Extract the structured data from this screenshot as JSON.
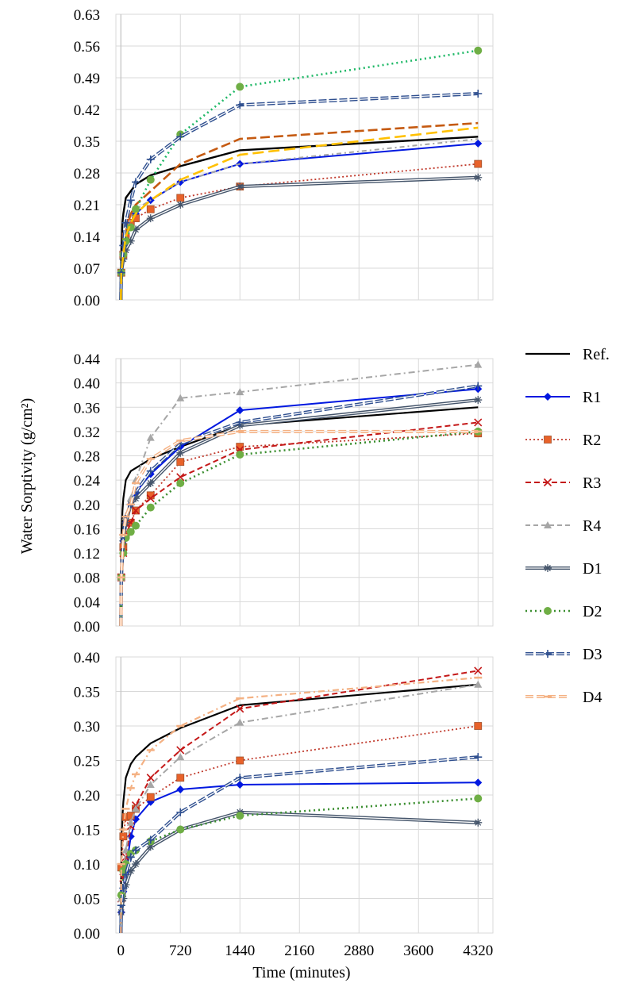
{
  "figure": {
    "ylabel": "Water Sorptivity (g/cm²)",
    "xlabel": "Time (minutes)"
  },
  "legend": [
    {
      "key": "ref",
      "label": "Ref."
    },
    {
      "key": "r1",
      "label": "R1"
    },
    {
      "key": "r2",
      "label": "R2"
    },
    {
      "key": "r3",
      "label": "R3"
    },
    {
      "key": "r4",
      "label": "R4"
    },
    {
      "key": "d1",
      "label": "D1"
    },
    {
      "key": "d2",
      "label": "D2"
    },
    {
      "key": "d3",
      "label": "D3"
    },
    {
      "key": "d4",
      "label": "D4"
    }
  ],
  "series_styles": {
    "ref": {
      "color": "#000000",
      "dash": "",
      "width": 2.2,
      "marker": "none"
    },
    "r1": {
      "color": "#0018e0",
      "dash": "",
      "width": 2.0,
      "marker": "diamond"
    },
    "r2": {
      "color": "#c0392b",
      "dash": "2 3",
      "width": 1.8,
      "marker": "square",
      "markerColor": "#e8622a"
    },
    "r3": {
      "color": "#c41818",
      "dash": "7 4",
      "width": 2.0,
      "marker": "x"
    },
    "r4": {
      "color": "#a6a6a6",
      "dash": "6 4",
      "width": 2.0,
      "marker": "triangle"
    },
    "d1": {
      "color": "#44546a",
      "dash": "",
      "width": 1.5,
      "marker": "asterisk",
      "double": true
    },
    "d2": {
      "color": "#3a8e2f",
      "dash": "2 4",
      "width": 2.6,
      "marker": "circle",
      "markerColor": "#6fae45"
    },
    "d3": {
      "color": "#2f4f8f",
      "dash": "10 3",
      "width": 1.5,
      "marker": "plus",
      "double": true
    },
    "d4": {
      "color": "#f4b183",
      "dash": "10 4",
      "width": 1.5,
      "marker": "dash",
      "double": true
    }
  },
  "chart_data": [
    {
      "type": "line",
      "panel": "top",
      "ylim": [
        0,
        0.63
      ],
      "yticks": [
        "0.00",
        "0.07",
        "0.14",
        "0.21",
        "0.28",
        "0.35",
        "0.42",
        "0.49",
        "0.56",
        "0.63"
      ],
      "xlim": [
        -60,
        4500
      ],
      "xticks": [
        "0",
        "720",
        "1440",
        "2160",
        "2880",
        "3600",
        "4320"
      ],
      "grid": true,
      "series": [
        {
          "key": "ref",
          "color": "#000000",
          "dash": "",
          "width": 2.4,
          "marker": "none",
          "x": [
            0,
            1,
            5,
            10,
            20,
            30,
            60,
            120,
            180,
            360,
            720,
            1440,
            4320
          ],
          "y": [
            0,
            0.06,
            0.1,
            0.13,
            0.17,
            0.19,
            0.225,
            0.24,
            0.255,
            0.275,
            0.295,
            0.33,
            0.36
          ]
        },
        {
          "key": "r1",
          "x": [
            0,
            5,
            30,
            60,
            120,
            180,
            360,
            720,
            1440,
            4320
          ],
          "y": [
            0,
            0.06,
            0.1,
            0.13,
            0.17,
            0.19,
            0.22,
            0.26,
            0.3,
            0.345
          ]
        },
        {
          "key": "r2",
          "x": [
            0,
            5,
            30,
            60,
            120,
            180,
            360,
            720,
            1440,
            4320
          ],
          "y": [
            0,
            0.06,
            0.1,
            0.14,
            0.17,
            0.18,
            0.2,
            0.225,
            0.25,
            0.3
          ]
        },
        {
          "key": "r3",
          "color": "#c55a11",
          "dash": "12 5",
          "width": 2.6,
          "marker": "none",
          "x": [
            0,
            5,
            30,
            60,
            120,
            180,
            360,
            720,
            1440,
            4320
          ],
          "y": [
            0,
            0.06,
            0.11,
            0.15,
            0.19,
            0.21,
            0.24,
            0.3,
            0.355,
            0.39
          ]
        },
        {
          "key": "r4",
          "color": "#a6a6a6",
          "dash": "6 4 2 4",
          "marker": "none",
          "x": [
            0,
            5,
            30,
            60,
            120,
            180,
            360,
            720,
            1440,
            4320
          ],
          "y": [
            0,
            0.06,
            0.11,
            0.15,
            0.18,
            0.2,
            0.22,
            0.26,
            0.3,
            0.355
          ]
        },
        {
          "key": "d1",
          "x": [
            0,
            5,
            30,
            60,
            120,
            180,
            360,
            720,
            1440,
            4320
          ],
          "y": [
            0,
            0.06,
            0.09,
            0.11,
            0.13,
            0.155,
            0.18,
            0.21,
            0.25,
            0.27
          ]
        },
        {
          "key": "d2",
          "color": "#1eb866",
          "x": [
            0,
            5,
            30,
            60,
            120,
            180,
            360,
            720,
            1440,
            4320
          ],
          "y": [
            0,
            0.06,
            0.1,
            0.13,
            0.16,
            0.2,
            0.265,
            0.365,
            0.47,
            0.55
          ]
        },
        {
          "key": "d3",
          "x": [
            0,
            5,
            30,
            60,
            120,
            180,
            360,
            720,
            1440,
            4320
          ],
          "y": [
            0,
            0.06,
            0.12,
            0.17,
            0.22,
            0.26,
            0.31,
            0.36,
            0.43,
            0.455
          ]
        },
        {
          "key": "d4",
          "color": "#ffc000",
          "dash": "14 6",
          "width": 2.6,
          "marker": "none",
          "double": false,
          "x": [
            0,
            5,
            30,
            60,
            120,
            180,
            360,
            720,
            1440,
            4320
          ],
          "y": [
            0,
            0.06,
            0.1,
            0.14,
            0.17,
            0.19,
            0.22,
            0.265,
            0.32,
            0.38
          ]
        }
      ]
    },
    {
      "type": "line",
      "panel": "middle",
      "ylim": [
        0,
        0.44
      ],
      "yticks": [
        "0.00",
        "0.04",
        "0.08",
        "0.12",
        "0.16",
        "0.20",
        "0.24",
        "0.28",
        "0.32",
        "0.36",
        "0.40",
        "0.44"
      ],
      "xlim": [
        -60,
        4500
      ],
      "xticks": [
        "0",
        "720",
        "1440",
        "2160",
        "2880",
        "3600",
        "4320"
      ],
      "grid": true,
      "series": [
        {
          "key": "ref",
          "x": [
            0,
            1,
            5,
            10,
            20,
            30,
            60,
            120,
            180,
            360,
            720,
            1440,
            4320
          ],
          "y": [
            0,
            0.08,
            0.13,
            0.16,
            0.19,
            0.21,
            0.24,
            0.255,
            0.26,
            0.275,
            0.295,
            0.33,
            0.36
          ]
        },
        {
          "key": "r1",
          "x": [
            0,
            5,
            30,
            60,
            120,
            180,
            360,
            720,
            1440,
            4320
          ],
          "y": [
            0,
            0.08,
            0.14,
            0.17,
            0.2,
            0.22,
            0.25,
            0.295,
            0.355,
            0.39
          ]
        },
        {
          "key": "r2",
          "x": [
            0,
            5,
            30,
            60,
            120,
            180,
            360,
            720,
            1440,
            4320
          ],
          "y": [
            0,
            0.08,
            0.13,
            0.15,
            0.17,
            0.19,
            0.215,
            0.27,
            0.295,
            0.317
          ]
        },
        {
          "key": "r3",
          "x": [
            0,
            5,
            30,
            60,
            120,
            180,
            360,
            720,
            1440,
            4320
          ],
          "y": [
            0,
            0.08,
            0.12,
            0.15,
            0.17,
            0.19,
            0.21,
            0.245,
            0.29,
            0.335
          ]
        },
        {
          "key": "r4",
          "dash": "8 4 2 4",
          "x": [
            0,
            5,
            30,
            60,
            120,
            180,
            360,
            720,
            1440,
            4320
          ],
          "y": [
            0,
            0.08,
            0.15,
            0.18,
            0.21,
            0.24,
            0.31,
            0.375,
            0.385,
            0.43
          ]
        },
        {
          "key": "d1",
          "x": [
            0,
            5,
            30,
            60,
            120,
            180,
            360,
            720,
            1440,
            4320
          ],
          "y": [
            0,
            0.08,
            0.14,
            0.17,
            0.2,
            0.21,
            0.235,
            0.285,
            0.33,
            0.372
          ]
        },
        {
          "key": "d2",
          "x": [
            0,
            5,
            30,
            60,
            120,
            180,
            360,
            720,
            1440,
            4320
          ],
          "y": [
            0,
            0.08,
            0.12,
            0.145,
            0.155,
            0.165,
            0.195,
            0.235,
            0.282,
            0.32
          ]
        },
        {
          "key": "d3",
          "x": [
            0,
            5,
            30,
            60,
            120,
            180,
            360,
            720,
            1440,
            4320
          ],
          "y": [
            0,
            0.08,
            0.15,
            0.18,
            0.2,
            0.22,
            0.255,
            0.3,
            0.335,
            0.395
          ]
        },
        {
          "key": "d4",
          "x": [
            0,
            5,
            30,
            60,
            120,
            180,
            360,
            720,
            1440,
            4320
          ],
          "y": [
            0,
            0.08,
            0.15,
            0.18,
            0.2,
            0.235,
            0.275,
            0.305,
            0.32,
            0.32
          ]
        }
      ]
    },
    {
      "type": "line",
      "panel": "bottom",
      "ylim": [
        0,
        0.4
      ],
      "yticks": [
        "0.00",
        "0.05",
        "0.10",
        "0.15",
        "0.20",
        "0.25",
        "0.30",
        "0.35",
        "0.40"
      ],
      "xlim": [
        -60,
        4500
      ],
      "xticks": [
        "0",
        "720",
        "1440",
        "2160",
        "2880",
        "3600",
        "4320"
      ],
      "grid": true,
      "series": [
        {
          "key": "ref",
          "x": [
            0,
            1,
            5,
            10,
            20,
            30,
            60,
            120,
            180,
            360,
            720,
            1440,
            4320
          ],
          "y": [
            0,
            0.06,
            0.1,
            0.13,
            0.17,
            0.19,
            0.225,
            0.245,
            0.255,
            0.275,
            0.297,
            0.33,
            0.36
          ]
        },
        {
          "key": "r1",
          "x": [
            0,
            5,
            30,
            60,
            120,
            180,
            360,
            720,
            1440,
            4320
          ],
          "y": [
            0,
            0.03,
            0.06,
            0.09,
            0.14,
            0.165,
            0.19,
            0.208,
            0.215,
            0.218
          ]
        },
        {
          "key": "r2",
          "x": [
            0,
            5,
            30,
            60,
            120,
            180,
            360,
            720,
            1440,
            4320
          ],
          "y": [
            0,
            0.095,
            0.14,
            0.168,
            0.17,
            0.18,
            0.197,
            0.225,
            0.25,
            0.3
          ]
        },
        {
          "key": "r3",
          "x": [
            0,
            5,
            30,
            60,
            120,
            180,
            360,
            720,
            1440,
            4320
          ],
          "y": [
            0,
            0.05,
            0.08,
            0.11,
            0.155,
            0.185,
            0.225,
            0.265,
            0.325,
            0.38
          ]
        },
        {
          "key": "r4",
          "dash": "8 4 2 4",
          "x": [
            0,
            5,
            30,
            60,
            120,
            180,
            360,
            720,
            1440,
            4320
          ],
          "y": [
            0,
            0.05,
            0.09,
            0.12,
            0.16,
            0.18,
            0.215,
            0.255,
            0.305,
            0.36
          ]
        },
        {
          "key": "d1",
          "x": [
            0,
            5,
            30,
            60,
            120,
            180,
            360,
            720,
            1440,
            4320
          ],
          "y": [
            0,
            0.03,
            0.05,
            0.07,
            0.09,
            0.1,
            0.125,
            0.15,
            0.175,
            0.16
          ]
        },
        {
          "key": "d2",
          "x": [
            0,
            5,
            30,
            60,
            120,
            180,
            360,
            720,
            1440,
            4320
          ],
          "y": [
            0,
            0.055,
            0.09,
            0.1,
            0.115,
            0.12,
            0.133,
            0.15,
            0.17,
            0.195
          ]
        },
        {
          "key": "d3",
          "x": [
            0,
            5,
            30,
            60,
            120,
            180,
            360,
            720,
            1440,
            4320
          ],
          "y": [
            0,
            0.04,
            0.065,
            0.085,
            0.11,
            0.12,
            0.135,
            0.175,
            0.225,
            0.255
          ]
        },
        {
          "key": "d4",
          "dash": "8 4 2 4",
          "double": false,
          "width": 2.2,
          "x": [
            0,
            5,
            30,
            60,
            120,
            180,
            360,
            720,
            1440,
            4320
          ],
          "y": [
            0,
            0.1,
            0.15,
            0.18,
            0.21,
            0.23,
            0.265,
            0.3,
            0.34,
            0.37
          ]
        }
      ]
    }
  ]
}
